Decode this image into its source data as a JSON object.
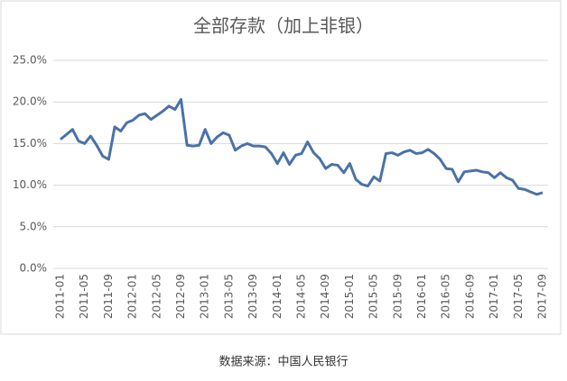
{
  "chart_data": {
    "type": "line",
    "title": "全部存款（加上非银）",
    "categories": [
      "2011-01",
      null,
      null,
      null,
      "2011-05",
      null,
      null,
      null,
      "2011-09",
      null,
      null,
      null,
      "2012-01",
      null,
      null,
      null,
      "2012-05",
      null,
      null,
      null,
      "2012-09",
      null,
      null,
      null,
      "2013-01",
      null,
      null,
      null,
      "2013-05",
      null,
      null,
      null,
      "2013-09",
      null,
      null,
      null,
      "2014-01",
      null,
      null,
      null,
      "2014-05",
      null,
      null,
      null,
      "2014-09",
      null,
      null,
      null,
      "2015-01",
      null,
      null,
      null,
      "2015-05",
      null,
      null,
      null,
      "2015-09",
      null,
      null,
      null,
      "2016-01",
      null,
      null,
      null,
      "2016-05",
      null,
      null,
      null,
      "2016-09",
      null,
      null,
      null,
      "2017-01",
      null,
      null,
      null,
      "2017-05",
      null,
      null,
      null,
      "2017-09"
    ],
    "values": [
      15.5,
      16.1,
      16.7,
      15.3,
      15.0,
      15.9,
      14.8,
      13.5,
      13.1,
      17.0,
      16.5,
      17.5,
      17.8,
      18.4,
      18.6,
      17.9,
      18.4,
      18.9,
      19.5,
      19.1,
      20.3,
      14.8,
      14.7,
      14.8,
      16.7,
      15.0,
      15.8,
      16.3,
      16.0,
      14.2,
      14.7,
      15.0,
      14.7,
      14.7,
      14.6,
      13.8,
      12.6,
      13.9,
      12.5,
      13.6,
      13.8,
      15.2,
      13.9,
      13.2,
      12.0,
      12.5,
      12.4,
      11.5,
      12.6,
      10.7,
      10.1,
      9.9,
      11.0,
      10.5,
      13.8,
      13.9,
      13.6,
      14.0,
      14.2,
      13.8,
      13.9,
      14.3,
      13.8,
      13.1,
      12.0,
      11.9,
      10.4,
      11.6,
      11.7,
      11.8,
      11.6,
      11.5,
      10.9,
      11.5,
      10.9,
      10.6,
      9.6,
      9.5,
      9.2,
      8.9,
      9.1
    ],
    "color": "#4a72a8",
    "ylim": [
      0,
      25
    ],
    "yticks": [
      {
        "value": 0,
        "label": "0.0%"
      },
      {
        "value": 5,
        "label": "5.0%"
      },
      {
        "value": 10,
        "label": "10.0%"
      },
      {
        "value": 15,
        "label": "15.0%"
      },
      {
        "value": 20,
        "label": "20.0%"
      },
      {
        "value": 25,
        "label": "25.0%"
      }
    ],
    "grid": true
  },
  "caption": "数据来源：中国人民银行"
}
